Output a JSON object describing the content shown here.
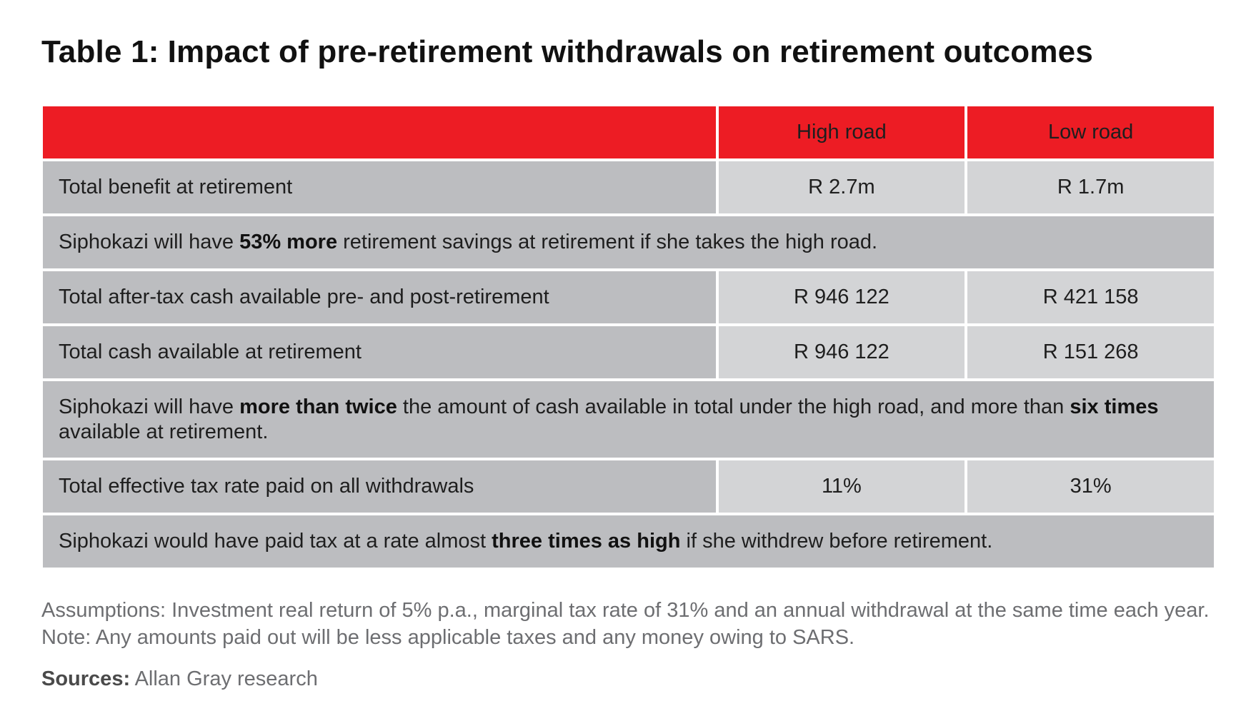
{
  "title": {
    "lead": "Table 1:",
    "text": "Impact of pre-retirement withdrawals on retirement outcomes"
  },
  "table": {
    "headers": [
      "",
      "High road",
      "Low road"
    ],
    "colors": {
      "header_bg": "#ed1c24",
      "label_bg": "#bcbdc0",
      "value_bg": "#d3d4d6"
    },
    "rows": [
      {
        "label": "Total benefit at retirement",
        "high": "R 2.7m",
        "low": "R 1.7m"
      },
      {
        "note": [
          {
            "t": "Siphokazi will have "
          },
          {
            "t": "53% more",
            "b": true
          },
          {
            "t": " retirement savings at retirement if she takes the high road."
          }
        ]
      },
      {
        "label": "Total after-tax cash available pre- and post-retirement",
        "high": "R 946 122",
        "low": "R 421 158"
      },
      {
        "label": "Total cash available at retirement",
        "high": "R 946 122",
        "low": "R 151 268"
      },
      {
        "note": [
          {
            "t": "Siphokazi will have "
          },
          {
            "t": "more than twice",
            "b": true
          },
          {
            "t": " the amount of cash available in total under the high road, and more than "
          },
          {
            "t": "six times",
            "b": true
          },
          {
            "t": " available at retirement."
          }
        ]
      },
      {
        "label": "Total effective tax rate paid on all withdrawals",
        "high": "11%",
        "low": "31%"
      },
      {
        "note": [
          {
            "t": "Siphokazi would have paid tax at a rate almost "
          },
          {
            "t": "three times as high",
            "b": true
          },
          {
            "t": " if she withdrew before retirement."
          }
        ]
      }
    ]
  },
  "footer": {
    "assumptions_line1": "Assumptions: Investment real return of 5% p.a., marginal tax rate of 31% and an annual withdrawal at the same time each year.",
    "assumptions_line2": "Note: Any amounts paid out will be less applicable taxes and any money owing to SARS.",
    "sources_label": "Sources:",
    "sources_text": " Allan Gray research"
  }
}
